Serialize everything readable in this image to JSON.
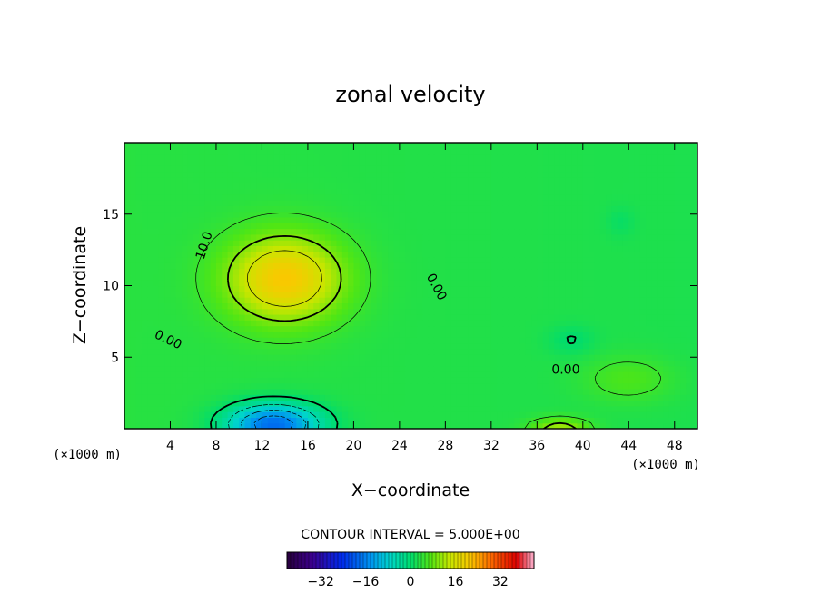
{
  "chart_data": {
    "type": "heatmap",
    "title": "zonal velocity",
    "xlabel": "X−coordinate",
    "ylabel": "Z−coordinate",
    "x_unit": "(×1000 m)",
    "z_unit": "(×1000 m)",
    "xlim": [
      0,
      50
    ],
    "ylim": [
      0,
      20
    ],
    "xticks": [
      4,
      8,
      12,
      16,
      20,
      24,
      28,
      32,
      36,
      40,
      44,
      48
    ],
    "yticks": [
      5,
      10,
      15
    ],
    "contour_interval_text": "CONTOUR INTERVAL = 5.000E+00",
    "contour_labels": [
      {
        "text": "10.0",
        "x": 7.0,
        "y": 12.8,
        "rotate": -72
      },
      {
        "text": "0.00",
        "x": 27.2,
        "y": 9.9,
        "rotate": 62
      },
      {
        "text": "0.00",
        "x": 3.8,
        "y": 6.2,
        "rotate": 25
      },
      {
        "text": "0.00",
        "x": 38.5,
        "y": 4.1,
        "rotate": 0
      }
    ],
    "colorbar": {
      "range": [
        -44,
        44
      ],
      "tick_labels": [
        "−32",
        "−16",
        "0",
        "16",
        "32"
      ],
      "tick_values": [
        -32,
        -16,
        0,
        16,
        32
      ]
    },
    "field_features": [
      {
        "kind": "max",
        "x": 14.0,
        "y": 10.5,
        "value": 18,
        "sx": 5.0,
        "sy": 3.0
      },
      {
        "kind": "min",
        "x": 13.0,
        "y": 0.3,
        "value": -22,
        "sx": 4.0,
        "sy": 1.4
      },
      {
        "kind": "max",
        "x": 38.0,
        "y": 0.0,
        "value": 10,
        "sx": 2.5,
        "sy": 0.7
      },
      {
        "kind": "max",
        "x": 44.0,
        "y": 3.5,
        "value": 4,
        "sx": 4.0,
        "sy": 1.6
      },
      {
        "kind": "min",
        "x": 39.0,
        "y": 6.2,
        "value": -3,
        "sx": 2.0,
        "sy": 1.0
      },
      {
        "kind": "min",
        "x": 43.3,
        "y": 14.5,
        "value": -2,
        "sx": 1.2,
        "sy": 1.0
      }
    ]
  }
}
